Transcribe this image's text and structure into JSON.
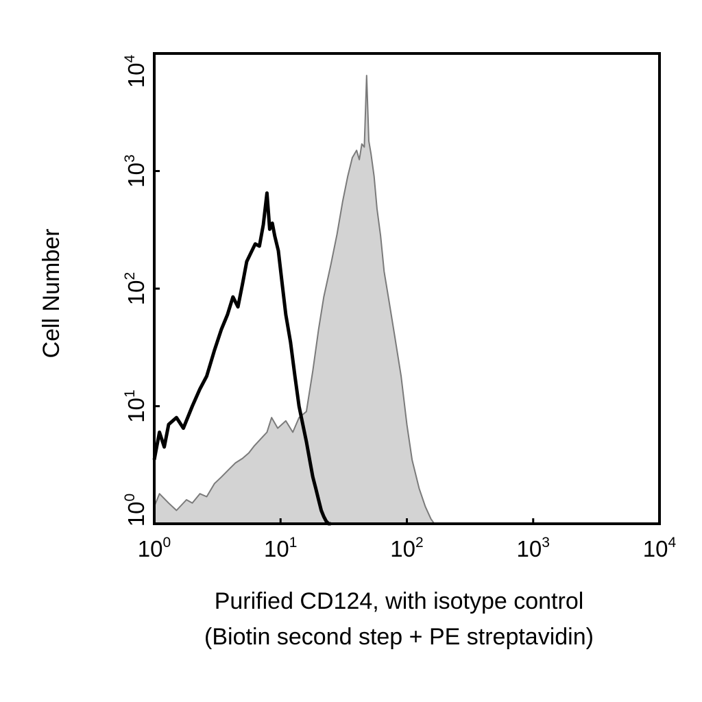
{
  "chart_data": {
    "type": "area",
    "xlabel": "Purified CD124, with isotype control",
    "xlabel_line2": "(Biotin second step + PE streptavidin)",
    "ylabel": "Cell Number",
    "x_scale": "log",
    "y_scale": "log",
    "xlim": [
      1,
      10000
    ],
    "ylim": [
      1,
      10000
    ],
    "grid": false,
    "legend": "none",
    "x_ticks": [
      {
        "base": "10",
        "exp": "0",
        "value": 1
      },
      {
        "base": "10",
        "exp": "1",
        "value": 10
      },
      {
        "base": "10",
        "exp": "2",
        "value": 100
      },
      {
        "base": "10",
        "exp": "3",
        "value": 1000
      },
      {
        "base": "10",
        "exp": "4",
        "value": 10000
      }
    ],
    "y_ticks": [
      {
        "base": "10",
        "exp": "0",
        "value": 1
      },
      {
        "base": "10",
        "exp": "1",
        "value": 10
      },
      {
        "base": "10",
        "exp": "2",
        "value": 100
      },
      {
        "base": "10",
        "exp": "3",
        "value": 1000
      },
      {
        "base": "10",
        "exp": "4",
        "value": 10000
      }
    ],
    "series": [
      {
        "style": "filled",
        "fill": "#d3d3d3",
        "stroke": "#7a7a7a",
        "x": [
          1.0,
          1.1,
          1.3,
          1.5,
          1.8,
          2.0,
          2.3,
          2.6,
          3.0,
          3.4,
          3.9,
          4.4,
          5.0,
          5.6,
          6.2,
          7.0,
          7.8,
          8.5,
          9.5,
          11,
          12.5,
          14,
          16,
          18,
          20,
          22,
          25,
          28,
          31,
          34,
          37,
          40,
          42,
          44,
          46,
          48,
          50,
          52,
          55,
          58,
          62,
          66,
          72,
          80,
          90,
          100,
          110,
          125,
          140,
          155,
          165
        ],
        "y": [
          1.4,
          1.8,
          1.5,
          1.3,
          1.6,
          1.5,
          1.8,
          1.7,
          2.2,
          2.5,
          2.9,
          3.3,
          3.6,
          4.0,
          4.6,
          5.3,
          6.0,
          8.0,
          6.5,
          7.5,
          6.0,
          8.0,
          9.0,
          20,
          45,
          85,
          160,
          290,
          550,
          900,
          1300,
          1500,
          1250,
          1700,
          1600,
          6500,
          1800,
          1400,
          900,
          480,
          280,
          140,
          80,
          40,
          18,
          7.0,
          3.5,
          2.0,
          1.4,
          1.1,
          1.0
        ]
      },
      {
        "style": "line",
        "stroke": "#000000",
        "x": [
          1.0,
          1.1,
          1.2,
          1.3,
          1.5,
          1.7,
          2.0,
          2.3,
          2.6,
          3.0,
          3.4,
          3.8,
          4.2,
          4.6,
          5.0,
          5.4,
          5.8,
          6.3,
          6.8,
          7.3,
          7.8,
          8.2,
          8.6,
          9.0,
          9.6,
          10.3,
          11,
          12,
          13,
          14,
          15,
          16,
          17,
          18,
          19,
          20,
          21,
          22,
          23,
          24,
          25
        ],
        "y": [
          3.5,
          6.0,
          4.5,
          7.0,
          8.0,
          6.5,
          10,
          14,
          18,
          30,
          45,
          60,
          85,
          70,
          110,
          170,
          200,
          240,
          230,
          350,
          650,
          320,
          360,
          280,
          210,
          110,
          60,
          35,
          18,
          10,
          7.0,
          5.0,
          3.5,
          2.5,
          2.0,
          1.6,
          1.3,
          1.15,
          1.05,
          1.0,
          1.0
        ]
      }
    ]
  }
}
